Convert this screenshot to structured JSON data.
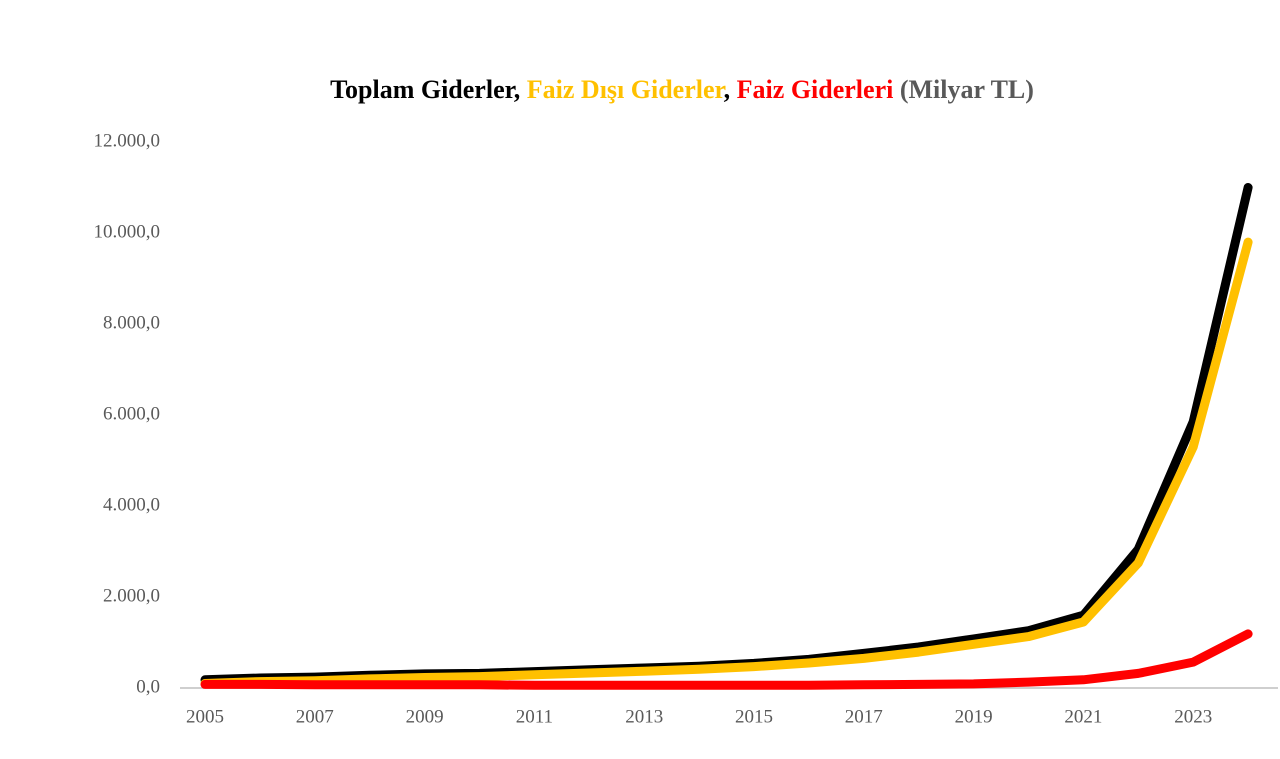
{
  "chart_data": {
    "type": "line",
    "title_parts": [
      {
        "text": "Toplam Giderler",
        "color": "#000000"
      },
      {
        "text": ", ",
        "color": "#000000"
      },
      {
        "text": "Faiz Dışı Giderler",
        "color": "#ffc000"
      },
      {
        "text": ", ",
        "color": "#000000"
      },
      {
        "text": "Faiz Giderleri",
        "color": "#ff0000"
      },
      {
        "text": " (Milyar TL)",
        "color": "#595959"
      }
    ],
    "categories": [
      "2005",
      null,
      "2007",
      null,
      "2009",
      null,
      "2011",
      null,
      "2013",
      null,
      "2015",
      null,
      "2017",
      null,
      "2019",
      null,
      "2021",
      null,
      "2023",
      null
    ],
    "series": [
      {
        "color": "#000000",
        "values": [
          180,
          220,
          240,
          280,
          310,
          320,
          360,
          400,
          440,
          480,
          540,
          630,
          760,
          900,
          1080,
          1260,
          1600,
          3050,
          5850,
          11000
        ]
      },
      {
        "color": "#ffc000",
        "values": [
          100,
          140,
          160,
          200,
          230,
          250,
          290,
          330,
          370,
          410,
          470,
          550,
          650,
          790,
          960,
          1130,
          1450,
          2750,
          5300,
          9800
        ]
      },
      {
        "color": "#ff0000",
        "values": [
          80,
          80,
          70,
          70,
          70,
          70,
          60,
          60,
          60,
          60,
          60,
          60,
          70,
          80,
          90,
          130,
          180,
          320,
          570,
          1190
        ]
      }
    ],
    "ylim": [
      0,
      12000
    ],
    "yticks": [
      {
        "value": 0,
        "label": "0,0"
      },
      {
        "value": 2000,
        "label": "2.000,0"
      },
      {
        "value": 4000,
        "label": "4.000,0"
      },
      {
        "value": 6000,
        "label": "6.000,0"
      },
      {
        "value": 8000,
        "label": "8.000,0"
      },
      {
        "value": 10000,
        "label": "10.000,0"
      },
      {
        "value": 12000,
        "label": "12.000,0"
      }
    ],
    "grid": false
  }
}
